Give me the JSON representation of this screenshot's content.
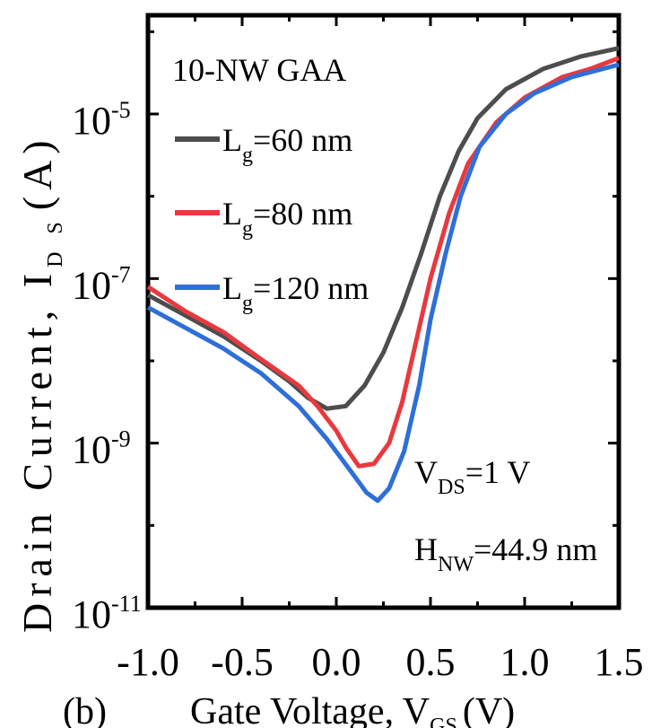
{
  "chart_data": {
    "type": "line",
    "panel_label": "(b)",
    "xlabel": {
      "main": "Gate Voltage, V",
      "sub": "GS",
      "unit": "(V)"
    },
    "ylabel": {
      "main": "Drain Current, I",
      "sub": "D S",
      "unit": "(A)"
    },
    "xlim": [
      -1.0,
      1.5
    ],
    "ylim_log10": [
      -11,
      -3.8
    ],
    "y_scale": "log",
    "x_ticks": [
      "-1.0",
      "-0.5",
      "0.0",
      "0.5",
      "1.0",
      "1.5"
    ],
    "x_tick_values": [
      -1.0,
      -0.5,
      0.0,
      0.5,
      1.0,
      1.5
    ],
    "y_ticks": [
      {
        "base": "10",
        "exp": "-11",
        "log": -11
      },
      {
        "base": "10",
        "exp": "-9",
        "log": -9
      },
      {
        "base": "10",
        "exp": "-7",
        "log": -7
      },
      {
        "base": "10",
        "exp": "-5",
        "log": -5
      }
    ],
    "legend_title": "10-NW GAA",
    "series": [
      {
        "name_main": "L",
        "name_sub": "g",
        "name_rest": "=60 nm",
        "color": "#4d4d4d",
        "points": [
          [
            -1.0,
            -7.2
          ],
          [
            -0.8,
            -7.45
          ],
          [
            -0.6,
            -7.7
          ],
          [
            -0.4,
            -8.0
          ],
          [
            -0.25,
            -8.25
          ],
          [
            -0.15,
            -8.45
          ],
          [
            -0.05,
            -8.58
          ],
          [
            0.05,
            -8.55
          ],
          [
            0.15,
            -8.3
          ],
          [
            0.25,
            -7.9
          ],
          [
            0.35,
            -7.35
          ],
          [
            0.45,
            -6.7
          ],
          [
            0.55,
            -6.0
          ],
          [
            0.65,
            -5.45
          ],
          [
            0.75,
            -5.05
          ],
          [
            0.9,
            -4.7
          ],
          [
            1.1,
            -4.45
          ],
          [
            1.3,
            -4.3
          ],
          [
            1.5,
            -4.2
          ]
        ]
      },
      {
        "name_main": "L",
        "name_sub": "g",
        "name_rest": "=80 nm",
        "color": "#e8393f",
        "points": [
          [
            -1.0,
            -7.1
          ],
          [
            -0.8,
            -7.4
          ],
          [
            -0.6,
            -7.65
          ],
          [
            -0.4,
            -7.98
          ],
          [
            -0.2,
            -8.3
          ],
          [
            -0.1,
            -8.55
          ],
          [
            0.0,
            -8.85
          ],
          [
            0.05,
            -9.05
          ],
          [
            0.12,
            -9.28
          ],
          [
            0.2,
            -9.25
          ],
          [
            0.28,
            -9.0
          ],
          [
            0.35,
            -8.5
          ],
          [
            0.42,
            -7.8
          ],
          [
            0.5,
            -7.0
          ],
          [
            0.6,
            -6.2
          ],
          [
            0.7,
            -5.6
          ],
          [
            0.85,
            -5.1
          ],
          [
            1.0,
            -4.8
          ],
          [
            1.2,
            -4.55
          ],
          [
            1.35,
            -4.45
          ],
          [
            1.5,
            -4.32
          ]
        ]
      },
      {
        "name_main": "L",
        "name_sub": "g",
        "name_rest": "=120 nm",
        "color": "#2e6fd8",
        "points": [
          [
            -1.0,
            -7.35
          ],
          [
            -0.8,
            -7.6
          ],
          [
            -0.6,
            -7.85
          ],
          [
            -0.4,
            -8.15
          ],
          [
            -0.2,
            -8.55
          ],
          [
            -0.05,
            -8.95
          ],
          [
            0.08,
            -9.35
          ],
          [
            0.16,
            -9.6
          ],
          [
            0.22,
            -9.7
          ],
          [
            0.28,
            -9.55
          ],
          [
            0.36,
            -9.1
          ],
          [
            0.44,
            -8.3
          ],
          [
            0.5,
            -7.5
          ],
          [
            0.58,
            -6.7
          ],
          [
            0.66,
            -6.0
          ],
          [
            0.76,
            -5.4
          ],
          [
            0.9,
            -5.0
          ],
          [
            1.05,
            -4.75
          ],
          [
            1.25,
            -4.55
          ],
          [
            1.5,
            -4.4
          ]
        ]
      }
    ],
    "annotations": [
      {
        "main": "V",
        "sub": "DS",
        "rest": "=1 V"
      },
      {
        "main": "H",
        "sub": "NW",
        "rest": "=44.9 nm"
      }
    ]
  }
}
